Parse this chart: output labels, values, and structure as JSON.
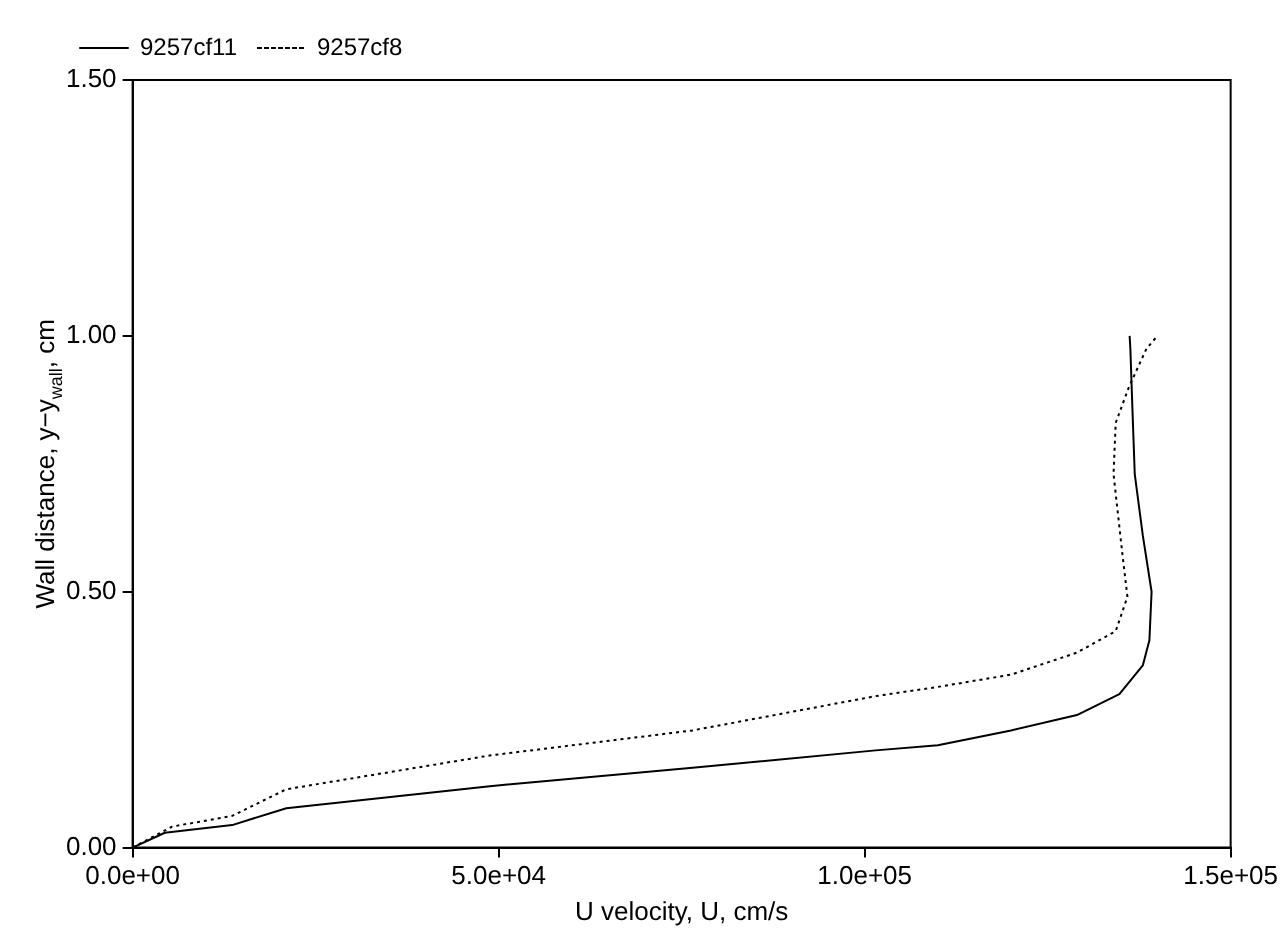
{
  "chart_data": {
    "type": "line",
    "xlabel": "U velocity, U, cm/s",
    "ylabel": "Wall distance, y−y$_{wall}$, cm",
    "xlim": [
      0,
      150000
    ],
    "ylim": [
      0,
      1.5
    ],
    "xticks": [
      {
        "value": 0,
        "label": "0.0e+00"
      },
      {
        "value": 50000,
        "label": "5.0e+04"
      },
      {
        "value": 100000,
        "label": "1.0e+05"
      },
      {
        "value": 150000,
        "label": "1.5e+05"
      }
    ],
    "yticks": [
      {
        "value": 0,
        "label": "0.00"
      },
      {
        "value": 0.5,
        "label": "0.50"
      },
      {
        "value": 1,
        "label": "1.00"
      },
      {
        "value": 1.5,
        "label": "1.50"
      }
    ],
    "grid": false,
    "legend": "top left",
    "marker": "none",
    "series": [
      {
        "name": "9257cf11",
        "color": "#000000",
        "line_style": "solid",
        "x": [
          0,
          4400,
          13600,
          21000,
          48800,
          76500,
          101500,
          110000,
          120000,
          129000,
          134800,
          138000,
          138900,
          139200,
          138000,
          136900,
          136600,
          136300,
          136200
        ],
        "values": [
          0,
          0.029,
          0.044,
          0.077,
          0.12,
          0.156,
          0.19,
          0.2,
          0.229,
          0.259,
          0.3,
          0.356,
          0.405,
          0.5,
          0.61,
          0.73,
          0.85,
          0.975,
          1.0
        ]
      },
      {
        "name": "9257cf8",
        "color": "#000000",
        "line_style": "dotted",
        "x": [
          0,
          5400,
          13600,
          21000,
          48800,
          76500,
          101500,
          110000,
          120000,
          129000,
          134300,
          135900,
          135200,
          134000,
          134300,
          136100,
          138500,
          140000
        ],
        "values": [
          0,
          0.041,
          0.062,
          0.114,
          0.18,
          0.229,
          0.296,
          0.314,
          0.338,
          0.381,
          0.423,
          0.49,
          0.575,
          0.73,
          0.83,
          0.9,
          0.975,
          1.0
        ]
      }
    ]
  }
}
